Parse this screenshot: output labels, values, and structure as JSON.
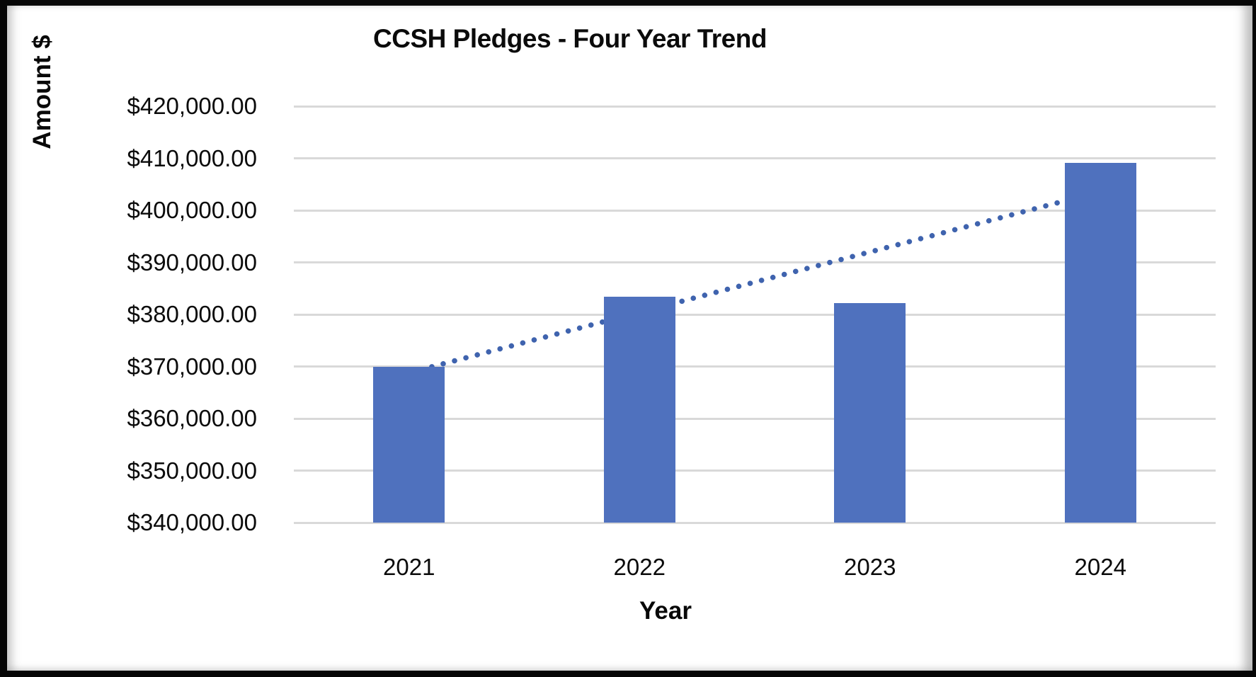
{
  "chart_data": {
    "type": "bar",
    "title": "CCSH Pledges - Four Year Trend",
    "xlabel": "Year",
    "ylabel": "Amount $",
    "categories": [
      "2021",
      "2022",
      "2023",
      "2024"
    ],
    "values": [
      370000,
      383400,
      382200,
      409100
    ],
    "value_format": "$#,##0.00",
    "ylim": [
      340000,
      420000
    ],
    "y_tick_step": 10000,
    "y_tick_labels": [
      "$420,000.00",
      "$410,000.00",
      "$400,000.00",
      "$390,000.00",
      "$380,000.00",
      "$370,000.00",
      "$360,000.00",
      "$350,000.00",
      "$340,000.00"
    ],
    "grid": true,
    "legend": "none",
    "bar_color": "#4F71BE",
    "gridline_color": "#D9D9D9",
    "trendline": {
      "type": "linear",
      "style": "dotted",
      "color": "#3F63AE",
      "start_value": 368800,
      "end_value": 403600
    }
  }
}
